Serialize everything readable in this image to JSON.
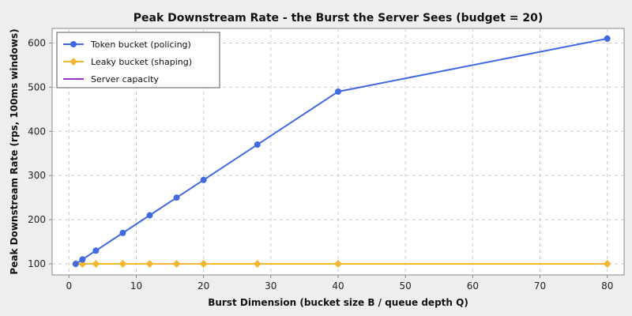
{
  "chart_data": {
    "type": "line",
    "title": "Peak Downstream Rate - the Burst the Server Sees (budget = 20)",
    "xlabel": "Burst Dimension (bucket size B / queue depth Q)",
    "ylabel": "Peak Downstream Rate (rps, 100ms windows)",
    "xlim": [
      -2.5,
      82.5
    ],
    "ylim": [
      75,
      633
    ],
    "xticks": [
      0,
      10,
      20,
      30,
      40,
      50,
      60,
      70,
      80
    ],
    "yticks": [
      100,
      200,
      300,
      400,
      500,
      600
    ],
    "grid": true,
    "legend_position": "top-left",
    "series": [
      {
        "name": "Token bucket (policing)",
        "color": "#4169e1",
        "marker": "circle",
        "x": [
          1,
          2,
          4,
          8,
          12,
          16,
          20,
          28,
          40,
          80
        ],
        "y": [
          100,
          110,
          130,
          170,
          210,
          250,
          290,
          370,
          490,
          610
        ]
      },
      {
        "name": "Leaky bucket (shaping)",
        "color": "#f5b731",
        "marker": "diamond",
        "x": [
          1,
          2,
          4,
          8,
          12,
          16,
          20,
          28,
          40,
          80
        ],
        "y": [
          100,
          100,
          100,
          100,
          100,
          100,
          100,
          100,
          100,
          100
        ]
      },
      {
        "name": "Server capacity",
        "color": "#9932cc",
        "marker": "none",
        "x": [
          1,
          80
        ],
        "y": [
          100,
          100
        ]
      }
    ]
  }
}
